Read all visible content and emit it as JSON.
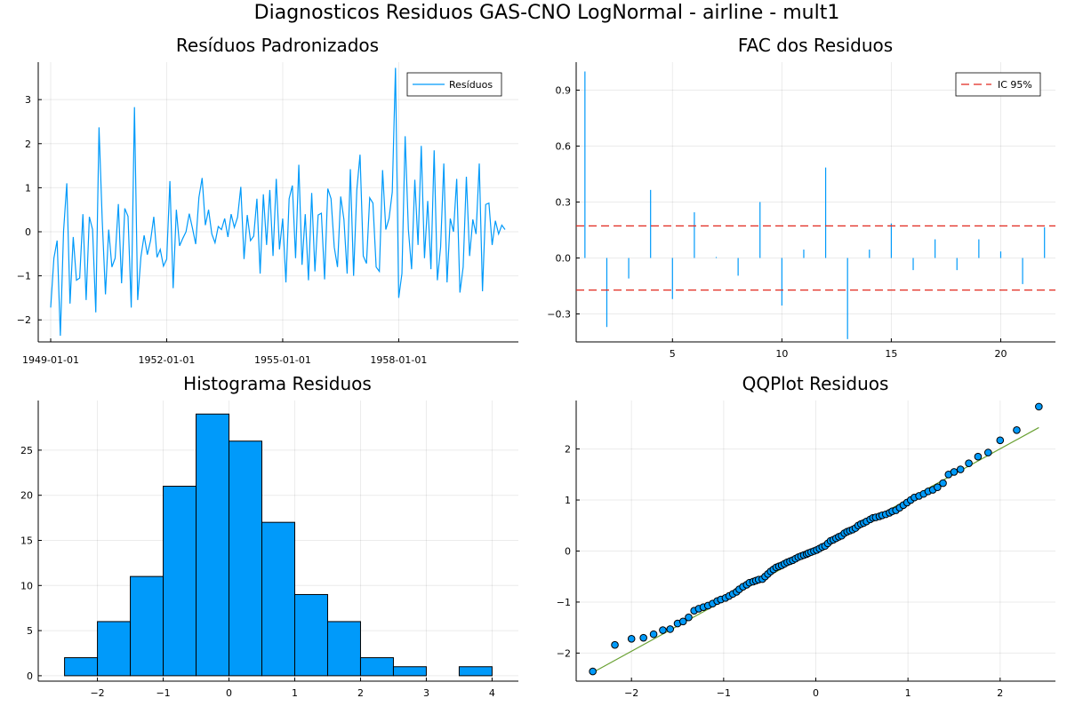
{
  "suptitle": "Diagnosticos Residuos  GAS-CNO LogNormal - airline - mult1",
  "colors": {
    "series": "#009AFA",
    "ci": "#E1281E",
    "qqline": "#6AA133",
    "edge": "#000000"
  },
  "chart_data": [
    {
      "type": "line",
      "title": "Resíduos Padronizados",
      "legend": "top-right",
      "series": [
        {
          "name": "Resíduos",
          "values": [
            -1.72,
            -0.6,
            -0.2,
            -2.36,
            0.02,
            1.1,
            -1.63,
            -0.12,
            -1.1,
            -1.05,
            0.4,
            -1.55,
            0.34,
            0.05,
            -1.83,
            2.37,
            0.25,
            -1.42,
            0.05,
            -0.8,
            -0.6,
            0.63,
            -1.17,
            0.53,
            0.35,
            -1.72,
            2.83,
            -1.55,
            -0.57,
            -0.08,
            -0.52,
            -0.2,
            0.34,
            -0.58,
            -0.4,
            -0.78,
            -0.62,
            1.15,
            -1.28,
            0.5,
            -0.32,
            -0.15,
            0.0,
            0.41,
            0.08,
            -0.28,
            0.78,
            1.22,
            0.15,
            0.5,
            -0.05,
            -0.25,
            0.12,
            0.05,
            0.3,
            -0.12,
            0.4,
            0.1,
            0.33,
            1.02,
            -0.62,
            0.38,
            -0.2,
            -0.1,
            0.75,
            -0.95,
            0.85,
            -0.3,
            0.95,
            -0.55,
            1.2,
            -0.4,
            0.3,
            -1.15,
            0.75,
            1.05,
            -0.6,
            1.52,
            -0.75,
            0.4,
            -1.1,
            0.88,
            -0.9,
            0.38,
            0.42,
            -1.08,
            0.98,
            0.75,
            -0.35,
            -0.8,
            0.8,
            0.28,
            -0.95,
            1.42,
            -1.0,
            0.95,
            1.75,
            -0.55,
            -0.72,
            0.77,
            0.65,
            -0.8,
            -0.9,
            1.4,
            0.05,
            0.3,
            0.9,
            3.72,
            -1.5,
            -0.95,
            2.17,
            0.05,
            -0.85,
            1.18,
            -0.3,
            1.95,
            -0.6,
            0.7,
            -0.85,
            1.85,
            -1.1,
            -0.35,
            1.55,
            -1.15,
            0.3,
            0.0,
            1.2,
            -1.38,
            -0.8,
            1.25,
            -0.55,
            0.28,
            -0.05,
            1.55,
            -1.35,
            0.62,
            0.65,
            -0.3,
            0.25,
            -0.05,
            0.15,
            0.05
          ]
        }
      ],
      "x_tick_labels": [
        "1949-01-01",
        "1952-01-01",
        "1955-01-01",
        "1958-01-01"
      ],
      "ylim": [
        -2.5,
        3.85
      ]
    },
    {
      "type": "bar",
      "title": "FAC dos Residuos",
      "legend": "top-right",
      "series": [
        {
          "name": "",
          "x": [
            1,
            2,
            3,
            4,
            5,
            6,
            7,
            8,
            9,
            10,
            11,
            12,
            13,
            14,
            15,
            16,
            17,
            18,
            19,
            20,
            21,
            22
          ],
          "values": [
            1.0,
            -0.37,
            -0.11,
            0.365,
            -0.22,
            0.245,
            0.005,
            -0.095,
            0.3,
            -0.255,
            0.045,
            0.485,
            -0.435,
            0.045,
            0.185,
            -0.065,
            0.1,
            -0.065,
            0.1,
            0.035,
            -0.14,
            0.165
          ]
        }
      ],
      "ci": {
        "name": "IC 95%",
        "value": 0.172
      },
      "xlim": [
        0.6,
        22.5
      ],
      "ylim": [
        -0.45,
        1.05
      ],
      "x_ticks": [
        "5",
        "10",
        "15",
        "20"
      ],
      "y_ticks": [
        "−0.3",
        "0.0",
        "0.3",
        "0.6",
        "0.9"
      ]
    },
    {
      "type": "bar",
      "title": "Histograma Residuos",
      "bin_edges": [
        -2.5,
        -2,
        -1.5,
        -1,
        -0.5,
        0,
        0.5,
        1,
        1.5,
        2,
        2.5,
        3,
        3.5,
        4
      ],
      "values": [
        2,
        6,
        11,
        21,
        29,
        26,
        17,
        9,
        6,
        2,
        1,
        0,
        1
      ],
      "xlim": [
        -2.9,
        4.4
      ],
      "ylim": [
        -0.6,
        30.5
      ],
      "x_ticks": [
        "−2",
        "−1",
        "0",
        "1",
        "2",
        "3",
        "4"
      ],
      "y_ticks": [
        "0",
        "5",
        "10",
        "15",
        "20",
        "25"
      ]
    },
    {
      "type": "scatter",
      "title": "QQPlot Residuos",
      "points": [
        [
          -2.42,
          -2.36
        ],
        [
          -2.18,
          -1.84
        ],
        [
          -2.0,
          -1.72
        ],
        [
          -1.87,
          -1.7
        ],
        [
          -1.76,
          -1.63
        ],
        [
          -1.66,
          -1.55
        ],
        [
          -1.58,
          -1.53
        ],
        [
          -1.5,
          -1.42
        ],
        [
          -1.44,
          -1.38
        ],
        [
          -1.38,
          -1.3
        ],
        [
          -1.32,
          -1.17
        ],
        [
          -1.27,
          -1.13
        ],
        [
          -1.22,
          -1.1
        ],
        [
          -1.17,
          -1.07
        ],
        [
          -1.12,
          -1.03
        ],
        [
          -1.07,
          -0.98
        ],
        [
          -1.03,
          -0.95
        ],
        [
          -0.98,
          -0.92
        ],
        [
          -0.94,
          -0.88
        ],
        [
          -0.9,
          -0.84
        ],
        [
          -0.86,
          -0.8
        ],
        [
          -0.83,
          -0.75
        ],
        [
          -0.79,
          -0.7
        ],
        [
          -0.75,
          -0.66
        ],
        [
          -0.72,
          -0.62
        ],
        [
          -0.68,
          -0.6
        ],
        [
          -0.65,
          -0.58
        ],
        [
          -0.62,
          -0.56
        ],
        [
          -0.58,
          -0.55
        ],
        [
          -0.55,
          -0.5
        ],
        [
          -0.52,
          -0.45
        ],
        [
          -0.49,
          -0.4
        ],
        [
          -0.46,
          -0.36
        ],
        [
          -0.43,
          -0.32
        ],
        [
          -0.4,
          -0.3
        ],
        [
          -0.37,
          -0.28
        ],
        [
          -0.34,
          -0.25
        ],
        [
          -0.31,
          -0.22
        ],
        [
          -0.28,
          -0.2
        ],
        [
          -0.25,
          -0.18
        ],
        [
          -0.22,
          -0.15
        ],
        [
          -0.19,
          -0.12
        ],
        [
          -0.16,
          -0.1
        ],
        [
          -0.13,
          -0.08
        ],
        [
          -0.1,
          -0.06
        ],
        [
          -0.08,
          -0.04
        ],
        [
          -0.05,
          -0.02
        ],
        [
          -0.02,
          0.0
        ],
        [
          0.01,
          0.02
        ],
        [
          0.04,
          0.05
        ],
        [
          0.07,
          0.08
        ],
        [
          0.1,
          0.1
        ],
        [
          0.13,
          0.15
        ],
        [
          0.16,
          0.2
        ],
        [
          0.19,
          0.22
        ],
        [
          0.22,
          0.25
        ],
        [
          0.25,
          0.28
        ],
        [
          0.28,
          0.3
        ],
        [
          0.31,
          0.35
        ],
        [
          0.34,
          0.38
        ],
        [
          0.37,
          0.4
        ],
        [
          0.4,
          0.42
        ],
        [
          0.43,
          0.45
        ],
        [
          0.46,
          0.5
        ],
        [
          0.49,
          0.53
        ],
        [
          0.52,
          0.55
        ],
        [
          0.55,
          0.58
        ],
        [
          0.59,
          0.62
        ],
        [
          0.62,
          0.65
        ],
        [
          0.65,
          0.66
        ],
        [
          0.69,
          0.68
        ],
        [
          0.72,
          0.7
        ],
        [
          0.76,
          0.72
        ],
        [
          0.8,
          0.75
        ],
        [
          0.83,
          0.78
        ],
        [
          0.87,
          0.8
        ],
        [
          0.91,
          0.85
        ],
        [
          0.95,
          0.9
        ],
        [
          0.99,
          0.95
        ],
        [
          1.03,
          1.0
        ],
        [
          1.07,
          1.05
        ],
        [
          1.12,
          1.08
        ],
        [
          1.17,
          1.12
        ],
        [
          1.22,
          1.17
        ],
        [
          1.27,
          1.2
        ],
        [
          1.32,
          1.25
        ],
        [
          1.38,
          1.33
        ],
        [
          1.44,
          1.5
        ],
        [
          1.5,
          1.55
        ],
        [
          1.57,
          1.6
        ],
        [
          1.66,
          1.72
        ],
        [
          1.76,
          1.85
        ],
        [
          1.87,
          1.93
        ],
        [
          2.0,
          2.17
        ],
        [
          2.18,
          2.37
        ],
        [
          2.42,
          2.83
        ]
      ],
      "line": [
        [
          -2.42,
          -2.38
        ],
        [
          2.42,
          2.42
        ]
      ],
      "xlim": [
        -2.6,
        2.6
      ],
      "ylim": [
        -2.55,
        2.95
      ],
      "x_ticks": [
        "−2",
        "−1",
        "0",
        "1",
        "2"
      ],
      "y_ticks": [
        "−2",
        "−1",
        "0",
        "1",
        "2"
      ]
    }
  ]
}
